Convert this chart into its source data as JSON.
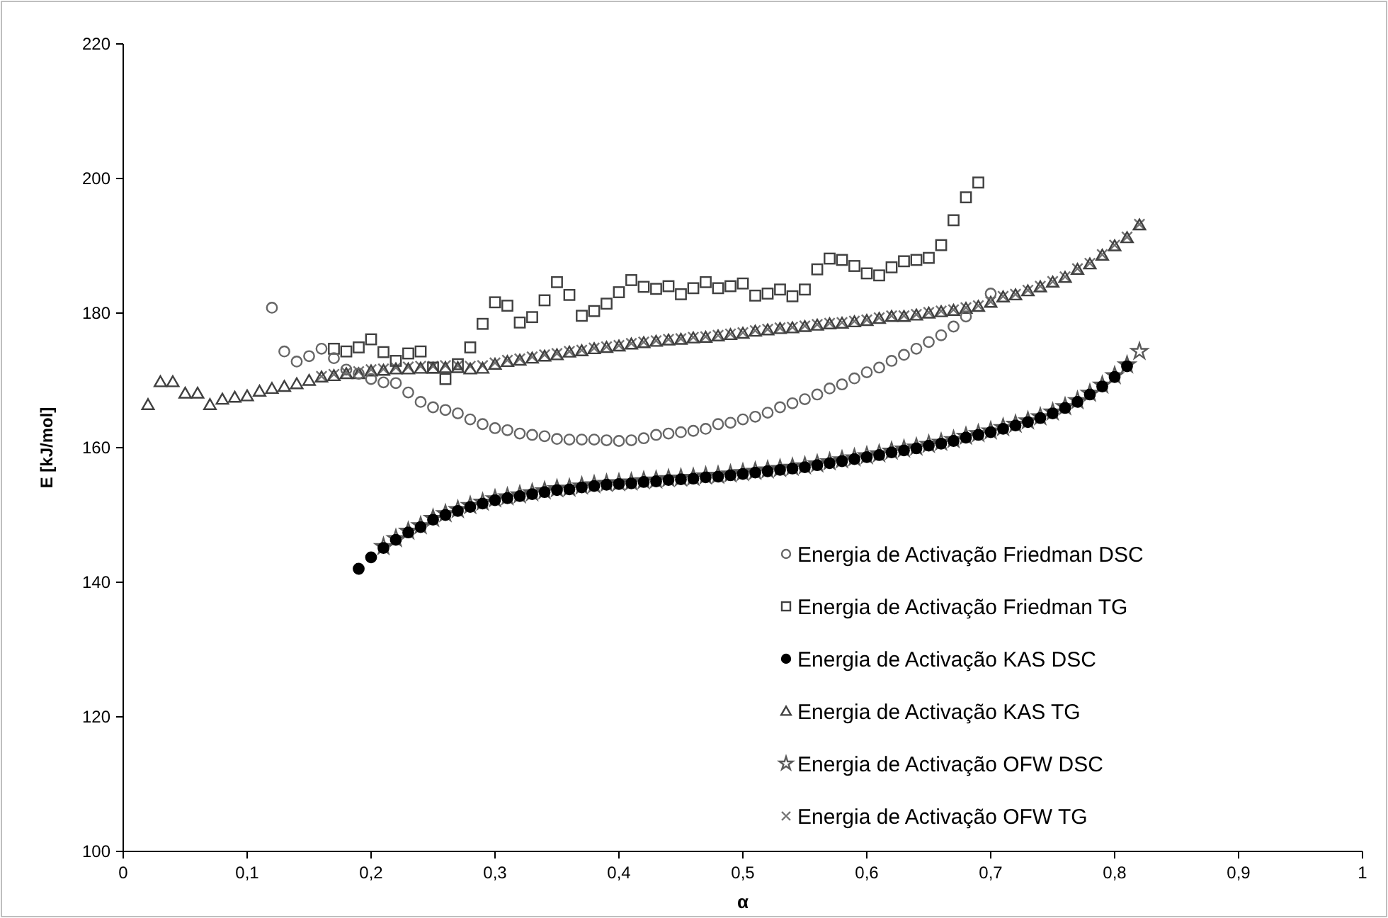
{
  "chart_data": {
    "type": "scatter",
    "xlabel": "α",
    "ylabel": "E [kJ/mol]",
    "legend": "bottom right",
    "grid": false,
    "xlim": [
      0,
      1
    ],
    "ylim": [
      100,
      220
    ],
    "xticks": [
      0,
      {
        "value": 0.1,
        "label": "0,1"
      },
      {
        "value": 0.2,
        "label": "0,2"
      },
      {
        "value": 0.3,
        "label": "0,3"
      },
      {
        "value": 0.4,
        "label": "0,4"
      },
      {
        "value": 0.5,
        "label": "0,5"
      },
      {
        "value": 0.6,
        "label": "0,6"
      },
      {
        "value": 0.7,
        "label": "0,7"
      },
      {
        "value": 0.8,
        "label": "0,8"
      },
      {
        "value": 0.9,
        "label": "0,9"
      },
      1
    ],
    "yticks": [
      100,
      120,
      140,
      160,
      180,
      200,
      220
    ],
    "series": [
      {
        "name": "Energia de Activação Friedman DSC",
        "color": "#666666",
        "marker": "circle",
        "x": [
          0.12,
          0.13,
          0.14,
          0.15,
          0.16,
          0.17,
          0.18,
          0.19,
          0.2,
          0.21,
          0.22,
          0.23,
          0.24,
          0.25,
          0.26,
          0.27,
          0.28,
          0.29,
          0.3,
          0.31,
          0.32,
          0.33,
          0.34,
          0.35,
          0.36,
          0.37,
          0.38,
          0.39,
          0.4,
          0.41,
          0.42,
          0.43,
          0.44,
          0.45,
          0.46,
          0.47,
          0.48,
          0.49,
          0.5,
          0.51,
          0.52,
          0.53,
          0.54,
          0.55,
          0.56,
          0.57,
          0.58,
          0.59,
          0.6,
          0.61,
          0.62,
          0.63,
          0.64,
          0.65,
          0.66,
          0.67,
          0.68,
          0.7
        ],
        "values": [
          180.8,
          174.3,
          172.8,
          173.6,
          174.7,
          173.3,
          171.6,
          171.0,
          170.2,
          169.7,
          169.6,
          168.2,
          166.8,
          166.0,
          165.6,
          165.1,
          164.2,
          163.5,
          162.9,
          162.6,
          162.1,
          161.9,
          161.7,
          161.3,
          161.2,
          161.2,
          161.2,
          161.1,
          161.0,
          161.1,
          161.4,
          161.9,
          162.1,
          162.3,
          162.5,
          162.8,
          163.5,
          163.7,
          164.2,
          164.6,
          165.2,
          166.0,
          166.6,
          167.2,
          167.9,
          168.8,
          169.4,
          170.3,
          171.2,
          171.9,
          172.9,
          173.8,
          174.7,
          175.7,
          176.7,
          178.0,
          179.5,
          182.9
        ]
      },
      {
        "name": "Energia de Activação Friedman TG",
        "color": "#404040",
        "marker": "square",
        "x": [
          0.17,
          0.18,
          0.19,
          0.2,
          0.21,
          0.22,
          0.23,
          0.24,
          0.25,
          0.26,
          0.27,
          0.28,
          0.29,
          0.3,
          0.31,
          0.32,
          0.33,
          0.34,
          0.35,
          0.36,
          0.37,
          0.38,
          0.39,
          0.4,
          0.41,
          0.42,
          0.43,
          0.44,
          0.45,
          0.46,
          0.47,
          0.48,
          0.49,
          0.5,
          0.51,
          0.52,
          0.53,
          0.54,
          0.55,
          0.56,
          0.57,
          0.58,
          0.59,
          0.6,
          0.61,
          0.62,
          0.63,
          0.64,
          0.65,
          0.66,
          0.67,
          0.68,
          0.69
        ],
        "values": [
          174.7,
          174.3,
          174.9,
          176.1,
          174.2,
          172.9,
          174.0,
          174.3,
          171.9,
          170.2,
          172.4,
          174.9,
          178.4,
          181.6,
          181.1,
          178.6,
          179.4,
          181.9,
          184.6,
          182.7,
          179.6,
          180.3,
          181.4,
          183.1,
          184.9,
          183.9,
          183.6,
          184.0,
          182.8,
          183.7,
          184.6,
          183.7,
          184.0,
          184.4,
          182.6,
          182.9,
          183.5,
          182.5,
          183.5,
          186.5,
          188.1,
          187.9,
          187.0,
          185.9,
          185.6,
          186.8,
          187.7,
          187.9,
          188.2,
          190.1,
          193.8,
          197.2,
          199.4
        ]
      },
      {
        "name": "Energia de Activação KAS DSC",
        "color": "#000000",
        "marker": "circle",
        "x": [
          0.19,
          0.2,
          0.21,
          0.22,
          0.23,
          0.24,
          0.25,
          0.26,
          0.27,
          0.28,
          0.29,
          0.3,
          0.31,
          0.32,
          0.33,
          0.34,
          0.35,
          0.36,
          0.37,
          0.38,
          0.39,
          0.4,
          0.41,
          0.42,
          0.43,
          0.44,
          0.45,
          0.46,
          0.47,
          0.48,
          0.49,
          0.5,
          0.51,
          0.52,
          0.53,
          0.54,
          0.55,
          0.56,
          0.57,
          0.58,
          0.59,
          0.6,
          0.61,
          0.62,
          0.63,
          0.64,
          0.65,
          0.66,
          0.67,
          0.68,
          0.69,
          0.7,
          0.71,
          0.72,
          0.73,
          0.74,
          0.75,
          0.76,
          0.77,
          0.78,
          0.79,
          0.8,
          0.81
        ],
        "values": [
          142.0,
          143.7,
          145.1,
          146.3,
          147.4,
          148.2,
          149.3,
          150.0,
          150.6,
          151.2,
          151.7,
          152.2,
          152.5,
          152.8,
          153.1,
          153.4,
          153.7,
          153.8,
          154.1,
          154.3,
          154.5,
          154.6,
          154.7,
          154.9,
          155.0,
          155.2,
          155.3,
          155.4,
          155.6,
          155.7,
          155.9,
          156.1,
          156.3,
          156.5,
          156.7,
          156.9,
          157.1,
          157.4,
          157.7,
          158.0,
          158.3,
          158.6,
          158.9,
          159.3,
          159.6,
          159.9,
          160.3,
          160.6,
          161.0,
          161.5,
          161.9,
          162.3,
          162.8,
          163.3,
          163.8,
          164.4,
          165.1,
          165.9,
          166.8,
          167.9,
          169.1,
          170.5,
          172.1
        ]
      },
      {
        "name": "Energia de Activação KAS TG",
        "color": "#404040",
        "marker": "triangle",
        "x": [
          0.02,
          0.03,
          0.04,
          0.05,
          0.06,
          0.07,
          0.08,
          0.09,
          0.1,
          0.11,
          0.12,
          0.13,
          0.14,
          0.15,
          0.16,
          0.17,
          0.18,
          0.19,
          0.2,
          0.21,
          0.22,
          0.23,
          0.24,
          0.25,
          0.26,
          0.27,
          0.28,
          0.29,
          0.3,
          0.31,
          0.32,
          0.33,
          0.34,
          0.35,
          0.36,
          0.37,
          0.38,
          0.39,
          0.4,
          0.41,
          0.42,
          0.43,
          0.44,
          0.45,
          0.46,
          0.47,
          0.48,
          0.49,
          0.5,
          0.51,
          0.52,
          0.53,
          0.54,
          0.55,
          0.56,
          0.57,
          0.58,
          0.59,
          0.6,
          0.61,
          0.62,
          0.63,
          0.64,
          0.65,
          0.66,
          0.67,
          0.68,
          0.69,
          0.7,
          0.71,
          0.72,
          0.73,
          0.74,
          0.75,
          0.76,
          0.77,
          0.78,
          0.79,
          0.8,
          0.81,
          0.82
        ],
        "values": [
          166.4,
          169.8,
          169.8,
          168.1,
          168.1,
          166.4,
          167.2,
          167.5,
          167.7,
          168.4,
          168.8,
          169.1,
          169.5,
          170.0,
          170.5,
          170.7,
          171.0,
          171.0,
          171.4,
          171.5,
          171.7,
          171.7,
          171.8,
          171.8,
          171.9,
          171.9,
          171.7,
          171.8,
          172.4,
          172.8,
          173.0,
          173.3,
          173.6,
          173.8,
          174.2,
          174.4,
          174.7,
          174.9,
          175.1,
          175.4,
          175.6,
          175.8,
          176.0,
          176.1,
          176.3,
          176.4,
          176.6,
          176.8,
          177.0,
          177.3,
          177.5,
          177.7,
          177.8,
          178.0,
          178.2,
          178.4,
          178.5,
          178.7,
          178.9,
          179.2,
          179.5,
          179.5,
          179.7,
          180.0,
          180.2,
          180.4,
          180.7,
          181.0,
          181.6,
          182.4,
          182.7,
          183.3,
          183.9,
          184.6,
          185.3,
          186.5,
          187.3,
          188.6,
          190.0,
          191.2,
          193.1
        ]
      },
      {
        "name": "Energia de Activação OFW DSC",
        "color": "#595959",
        "marker": "star",
        "x": [
          0.21,
          0.22,
          0.23,
          0.24,
          0.25,
          0.26,
          0.27,
          0.28,
          0.29,
          0.3,
          0.31,
          0.32,
          0.33,
          0.34,
          0.35,
          0.36,
          0.37,
          0.38,
          0.39,
          0.4,
          0.41,
          0.42,
          0.43,
          0.44,
          0.45,
          0.46,
          0.47,
          0.48,
          0.49,
          0.5,
          0.51,
          0.52,
          0.53,
          0.54,
          0.55,
          0.56,
          0.57,
          0.58,
          0.59,
          0.6,
          0.61,
          0.62,
          0.63,
          0.64,
          0.65,
          0.66,
          0.67,
          0.68,
          0.69,
          0.7,
          0.71,
          0.72,
          0.73,
          0.74,
          0.75,
          0.76,
          0.77,
          0.78,
          0.79,
          0.8,
          0.81,
          0.82
        ],
        "values": [
          145.3,
          146.5,
          147.6,
          148.4,
          149.5,
          150.2,
          150.8,
          151.4,
          151.9,
          152.4,
          152.7,
          153.0,
          153.3,
          153.6,
          153.9,
          154.0,
          154.3,
          154.5,
          154.7,
          154.8,
          154.9,
          155.1,
          155.2,
          155.4,
          155.5,
          155.6,
          155.8,
          155.9,
          156.1,
          156.3,
          156.5,
          156.7,
          156.9,
          157.1,
          157.3,
          157.6,
          157.9,
          158.2,
          158.5,
          158.8,
          159.1,
          159.5,
          159.8,
          160.1,
          160.5,
          160.8,
          161.2,
          161.7,
          162.1,
          162.5,
          163.0,
          163.5,
          164.0,
          164.6,
          165.3,
          166.1,
          167.0,
          168.1,
          169.3,
          170.7,
          172.3,
          174.3
        ]
      },
      {
        "name": "Energia de Activação OFW TG",
        "color": "#737373",
        "marker": "cross",
        "x": [
          0.16,
          0.17,
          0.18,
          0.19,
          0.2,
          0.21,
          0.22,
          0.23,
          0.24,
          0.25,
          0.26,
          0.27,
          0.28,
          0.29,
          0.3,
          0.31,
          0.32,
          0.33,
          0.34,
          0.35,
          0.36,
          0.37,
          0.38,
          0.39,
          0.4,
          0.41,
          0.42,
          0.43,
          0.44,
          0.45,
          0.46,
          0.47,
          0.48,
          0.49,
          0.5,
          0.51,
          0.52,
          0.53,
          0.54,
          0.55,
          0.56,
          0.57,
          0.58,
          0.59,
          0.6,
          0.61,
          0.62,
          0.63,
          0.64,
          0.65,
          0.66,
          0.67,
          0.68,
          0.69,
          0.7,
          0.71,
          0.72,
          0.73,
          0.74,
          0.75,
          0.76,
          0.77,
          0.78,
          0.79,
          0.8,
          0.81,
          0.82
        ],
        "values": [
          170.6,
          170.9,
          171.2,
          171.3,
          171.6,
          171.7,
          171.9,
          172.0,
          172.1,
          172.1,
          172.2,
          172.2,
          172.1,
          172.2,
          172.6,
          173.0,
          173.2,
          173.5,
          173.8,
          174.0,
          174.3,
          174.5,
          174.8,
          175.0,
          175.2,
          175.5,
          175.7,
          175.9,
          176.1,
          176.2,
          176.4,
          176.5,
          176.7,
          176.9,
          177.1,
          177.4,
          177.6,
          177.8,
          177.9,
          178.1,
          178.3,
          178.5,
          178.6,
          178.8,
          179.0,
          179.3,
          179.6,
          179.6,
          179.8,
          180.1,
          180.3,
          180.5,
          180.8,
          181.1,
          181.7,
          182.5,
          182.8,
          183.4,
          184.0,
          184.7,
          185.4,
          186.6,
          187.4,
          188.7,
          190.1,
          191.3,
          193.2
        ]
      }
    ]
  }
}
